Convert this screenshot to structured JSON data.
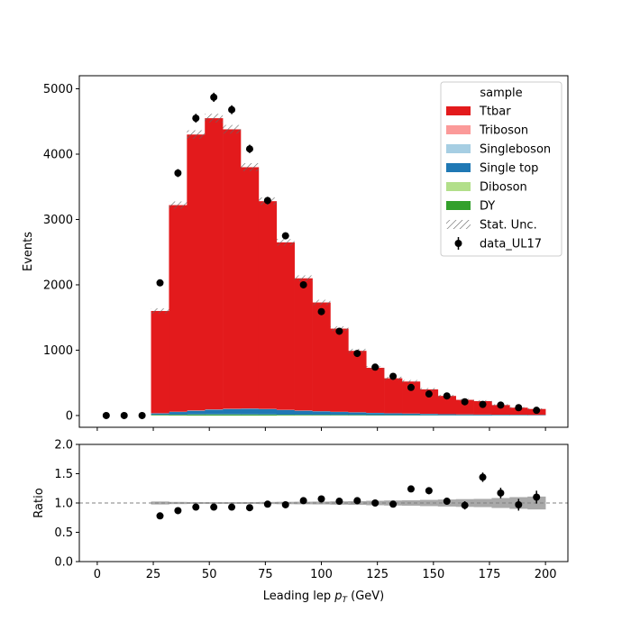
{
  "chart_data": [
    {
      "type": "bar",
      "panel": "main",
      "stacked": true,
      "ylabel": "Events",
      "ylim": [
        -180,
        5200
      ],
      "xlim": [
        -8,
        210
      ],
      "xticks": [
        0,
        25,
        50,
        75,
        100,
        125,
        150,
        175,
        200
      ],
      "yticks": [
        0,
        1000,
        2000,
        3000,
        4000,
        5000
      ],
      "bin_edges": [
        24,
        32,
        40,
        48,
        56,
        64,
        72,
        80,
        88,
        96,
        104,
        112,
        120,
        128,
        136,
        144,
        152,
        160,
        168,
        176,
        184,
        192,
        200
      ],
      "series": [
        {
          "name": "DY",
          "color": "#33a02c",
          "values": [
            10,
            12,
            14,
            15,
            15,
            14,
            13,
            11,
            10,
            9,
            8,
            7,
            6,
            5,
            5,
            4,
            3,
            3,
            2,
            2,
            2,
            1
          ]
        },
        {
          "name": "Diboson",
          "color": "#b2df8a",
          "values": [
            2,
            2,
            3,
            3,
            3,
            3,
            3,
            2,
            2,
            2,
            2,
            2,
            1,
            1,
            1,
            1,
            1,
            1,
            1,
            1,
            1,
            1
          ]
        },
        {
          "name": "Single top",
          "color": "#1f78b4",
          "values": [
            20,
            40,
            55,
            70,
            80,
            85,
            80,
            70,
            60,
            52,
            44,
            38,
            32,
            27,
            23,
            19,
            16,
            13,
            11,
            9,
            8,
            7
          ]
        },
        {
          "name": "Singleboson",
          "color": "#a6cee3",
          "values": [
            3,
            4,
            5,
            5,
            5,
            5,
            5,
            4,
            4,
            3,
            3,
            3,
            2,
            2,
            2,
            2,
            1,
            1,
            1,
            1,
            1,
            1
          ]
        },
        {
          "name": "Triboson",
          "color": "#fb9a99",
          "values": [
            0,
            0,
            0,
            0,
            0,
            0,
            0,
            0,
            0,
            0,
            0,
            0,
            0,
            0,
            0,
            0,
            0,
            0,
            0,
            0,
            0,
            0
          ]
        },
        {
          "name": "Ttbar",
          "color": "#e31a1c",
          "values": [
            1565,
            3162,
            4223,
            4457,
            4277,
            3693,
            3179,
            2563,
            2024,
            1664,
            1273,
            940,
            689,
            535,
            489,
            374,
            279,
            222,
            205,
            147,
            108,
            90
          ]
        }
      ],
      "stat_unc_name": "Stat. Unc.",
      "stat_unc": [
        40,
        56,
        65,
        67,
        66,
        61,
        57,
        51,
        45,
        41,
        36,
        31,
        27,
        24,
        23,
        20,
        17,
        15,
        15,
        13,
        11,
        10
      ],
      "data": {
        "name": "data_UL17",
        "x": [
          4,
          12,
          20,
          28,
          36,
          44,
          52,
          60,
          68,
          76,
          84,
          92,
          100,
          108,
          116,
          124,
          132,
          140,
          148,
          156,
          164,
          172,
          180,
          188,
          196
        ],
        "y": [
          0,
          0,
          0,
          2030,
          3710,
          4550,
          4870,
          4680,
          4080,
          3290,
          2750,
          2000,
          1590,
          1290,
          950,
          740,
          600,
          430,
          330,
          300,
          210,
          170,
          160,
          120,
          80
        ],
        "yerr": [
          0,
          0,
          0,
          45,
          61,
          67,
          70,
          68,
          64,
          57,
          52,
          45,
          40,
          36,
          31,
          27,
          24,
          21,
          18,
          17,
          14,
          13,
          13,
          11,
          9
        ]
      },
      "legend": {
        "title": "sample",
        "placement": "top-right",
        "entries": [
          "Ttbar",
          "Triboson",
          "Singleboson",
          "Single top",
          "Diboson",
          "DY",
          "Stat. Unc.",
          "data_UL17"
        ]
      }
    },
    {
      "type": "scatter",
      "panel": "ratio",
      "ylabel": "Ratio",
      "xlabel_prefix": "Leading lep ",
      "xlabel_var": "p",
      "xlabel_sub": "T",
      "xlabel_suffix": " (GeV)",
      "ylim": [
        0,
        2
      ],
      "xlim": [
        -8,
        210
      ],
      "xticks": [
        0,
        25,
        50,
        75,
        100,
        125,
        150,
        175,
        200
      ],
      "yticks": [
        0.0,
        0.5,
        1.0,
        1.5,
        2.0
      ],
      "ytick_labels": [
        "0.0",
        "0.5",
        "1.0",
        "1.5",
        "2.0"
      ],
      "reference_line": 1.0,
      "x": [
        28,
        36,
        44,
        52,
        60,
        68,
        76,
        84,
        92,
        100,
        108,
        116,
        124,
        132,
        140,
        148,
        156,
        164,
        172,
        180,
        188,
        196
      ],
      "y": [
        0.78,
        0.87,
        0.93,
        0.93,
        0.93,
        0.92,
        0.98,
        0.97,
        1.04,
        1.07,
        1.03,
        1.04,
        1.0,
        0.98,
        1.24,
        1.21,
        1.03,
        0.96,
        1.44,
        1.17,
        0.97,
        1.1
      ],
      "yerr": [
        0.03,
        0.02,
        0.02,
        0.02,
        0.02,
        0.02,
        0.02,
        0.02,
        0.02,
        0.03,
        0.03,
        0.04,
        0.04,
        0.04,
        0.05,
        0.06,
        0.06,
        0.07,
        0.08,
        0.09,
        0.1,
        0.11
      ],
      "band": [
        0.025,
        0.018,
        0.015,
        0.015,
        0.015,
        0.016,
        0.018,
        0.02,
        0.022,
        0.024,
        0.028,
        0.032,
        0.038,
        0.043,
        0.046,
        0.053,
        0.06,
        0.066,
        0.07,
        0.085,
        0.1,
        0.11
      ]
    }
  ]
}
